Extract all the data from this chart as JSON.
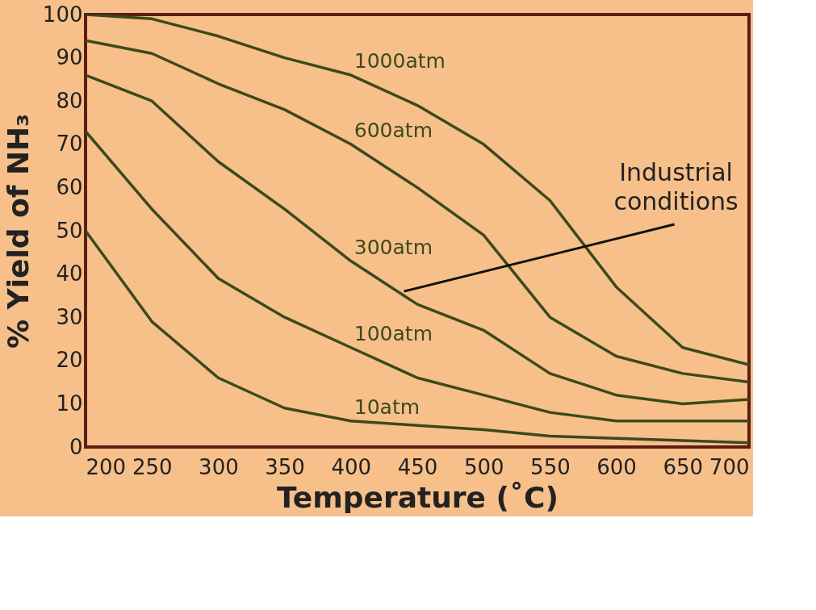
{
  "chart_data": {
    "type": "line",
    "xlabel": "Temperature (˚C)",
    "ylabel": "% Yield of NH₃",
    "x": [
      200,
      250,
      300,
      350,
      400,
      450,
      500,
      550,
      600,
      650,
      700
    ],
    "series": [
      {
        "name": "1000atm",
        "color": "#3b4a1c",
        "values": [
          100,
          99,
          95,
          90,
          86,
          79,
          70,
          57,
          37,
          23,
          19
        ]
      },
      {
        "name": "600atm",
        "color": "#3b4a1c",
        "values": [
          94,
          91,
          84,
          78,
          70,
          60,
          49,
          30,
          21,
          17,
          15
        ]
      },
      {
        "name": "300atm",
        "color": "#3b4a1c",
        "values": [
          86,
          80,
          66,
          55,
          43,
          33,
          27,
          17,
          12,
          10,
          11
        ]
      },
      {
        "name": "100atm",
        "color": "#3b4a1c",
        "values": [
          73,
          55,
          39,
          30,
          23,
          16,
          12,
          8,
          6,
          6,
          6
        ]
      },
      {
        "name": "10atm",
        "color": "#3b4a1c",
        "values": [
          50,
          29,
          16,
          9,
          6,
          5,
          4,
          2.5,
          2,
          1.5,
          1
        ]
      }
    ],
    "annotations": [
      {
        "text": "Industrial conditions",
        "x": 440,
        "y": 36
      }
    ],
    "xlim": [
      200,
      700
    ],
    "ylim": [
      0,
      100
    ],
    "xticks": [
      200,
      250,
      300,
      350,
      400,
      450,
      500,
      550,
      600,
      650,
      700
    ],
    "yticks": [
      0,
      10,
      20,
      30,
      40,
      50,
      60,
      70,
      80,
      90,
      100
    ],
    "grid": false,
    "legend": false,
    "marker": "none",
    "line_style": "solid"
  }
}
